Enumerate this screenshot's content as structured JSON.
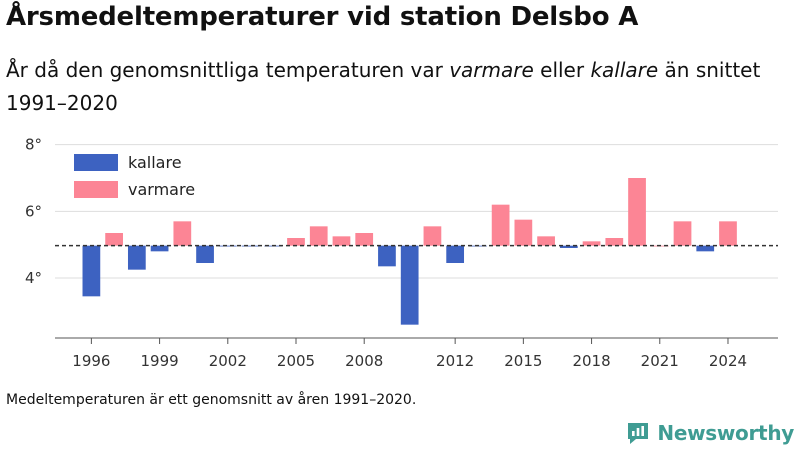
{
  "title": "Årsmedeltemperaturer vid station Delsbo A",
  "subtitle": {
    "part1": "År då den genomsnittliga temperaturen var ",
    "warmer": "varmare",
    "part2": " eller ",
    "colder": "kallare",
    "part3": " än snittet 1991–2020"
  },
  "footnote": "Medeltemperaturen är ett genomsnitt av åren 1991–2020.",
  "brand": "Newsworthy",
  "colors": {
    "colder": "#3d62c1",
    "warmer": "#fc8595",
    "reference": "#333333",
    "grid": "#dddddd",
    "brand": "#3f9c93"
  },
  "chart_data": {
    "type": "bar",
    "title": "Årsmedeltemperaturer vid station Delsbo A",
    "baseline": 4.97,
    "ylim": [
      2.2,
      8.2
    ],
    "y_ticks": [
      4,
      6,
      8
    ],
    "y_tick_labels": [
      "4°",
      "6°",
      "8°"
    ],
    "x_ticks": [
      1996,
      1999,
      2002,
      2005,
      2008,
      2012,
      2015,
      2018,
      2021,
      2024
    ],
    "xlim": [
      1994.4,
      2026.2
    ],
    "grid": true,
    "legend": {
      "placement": "top-left",
      "entries": [
        {
          "key": "colder",
          "label": "kallare"
        },
        {
          "key": "warmer",
          "label": "varmare"
        }
      ]
    },
    "series": [
      {
        "name": "kallare",
        "key": "colder"
      },
      {
        "name": "varmare",
        "key": "warmer"
      }
    ],
    "years": [
      1996,
      1997,
      1998,
      1999,
      2000,
      2001,
      2002,
      2003,
      2004,
      2005,
      2006,
      2007,
      2008,
      2009,
      2010,
      2011,
      2012,
      2013,
      2014,
      2015,
      2016,
      2017,
      2018,
      2019,
      2020,
      2021,
      2022,
      2023,
      2024
    ],
    "values": [
      3.45,
      5.35,
      4.25,
      4.8,
      5.7,
      4.45,
      4.95,
      4.95,
      4.95,
      5.2,
      5.55,
      5.25,
      5.35,
      4.35,
      2.6,
      5.55,
      4.45,
      4.95,
      6.2,
      5.75,
      5.25,
      4.9,
      5.1,
      5.2,
      7.0,
      4.97,
      5.7,
      4.8,
      5.7
    ]
  }
}
